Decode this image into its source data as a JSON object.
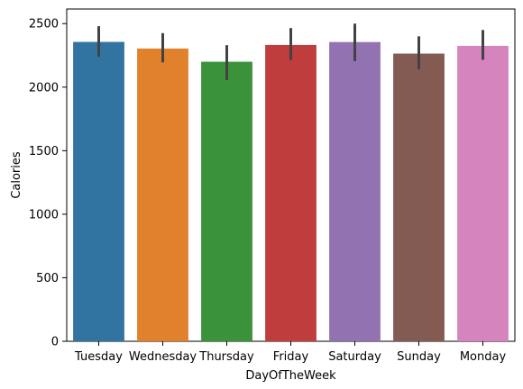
{
  "chart_data": {
    "type": "bar",
    "title": "",
    "xlabel": "DayOfTheWeek",
    "ylabel": "Calories",
    "categories": [
      "Tuesday",
      "Wednesday",
      "Thursday",
      "Friday",
      "Saturday",
      "Sunday",
      "Monday"
    ],
    "values": [
      2356,
      2304,
      2200,
      2332,
      2355,
      2264,
      2325
    ],
    "error_low": [
      2240,
      2195,
      2055,
      2215,
      2205,
      2140,
      2215
    ],
    "error_high": [
      2480,
      2425,
      2330,
      2465,
      2500,
      2400,
      2450
    ],
    "colors": [
      "#3274a1",
      "#e1812c",
      "#3a923a",
      "#c03d3e",
      "#9372b2",
      "#845b53",
      "#d684bd"
    ],
    "error_color": "#424242",
    "ylim": [
      0,
      2615
    ],
    "yticks": [
      0,
      500,
      1000,
      1500,
      2000,
      2500
    ],
    "grid": false,
    "legend": false
  }
}
